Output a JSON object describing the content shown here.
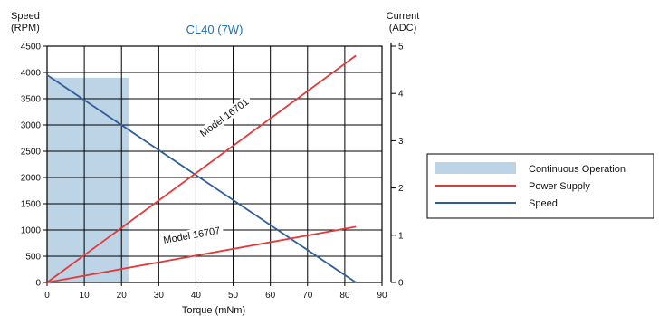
{
  "chart_data": {
    "type": "line",
    "title": "CL40 (7W)",
    "xlabel": "Torque (mNm)",
    "ylabel_left": [
      "Speed",
      "(RPM)"
    ],
    "ylabel_right": [
      "Current",
      "(ADC)"
    ],
    "xlim": [
      0,
      90
    ],
    "ylim_left": [
      0,
      4500
    ],
    "ylim_right": [
      0,
      5
    ],
    "x_ticks": [
      "0",
      "10",
      "20",
      "30",
      "40",
      "50",
      "60",
      "70",
      "80",
      "90"
    ],
    "y_left_ticks": [
      "0",
      "500",
      "1000",
      "1500",
      "2000",
      "2500",
      "3000",
      "3500",
      "4000",
      "4500"
    ],
    "y_right_ticks": [
      "0",
      "1",
      "2",
      "3",
      "4",
      "5"
    ],
    "grid": true,
    "legend_position": "right",
    "continuous_operation": {
      "x": [
        0,
        22
      ],
      "y": [
        0,
        3900
      ],
      "axis": "left",
      "color": "#bcd4e6"
    },
    "series": [
      {
        "name": "Speed",
        "axis": "left",
        "color": "#2f5e98",
        "x": [
          0,
          83
        ],
        "y": [
          3950,
          0
        ]
      },
      {
        "name": "Power Supply",
        "axis": "right",
        "color": "#e23a3a",
        "x": [
          0,
          83
        ],
        "y": [
          0,
          4.8
        ],
        "label": "Model 16701"
      },
      {
        "name": "Power Supply",
        "axis": "right",
        "color": "#e23a3a",
        "x": [
          0,
          83
        ],
        "y": [
          0,
          1.18
        ],
        "label": "Model 16707"
      }
    ],
    "annotations": [
      {
        "text": "Model 16701",
        "x": 48,
        "y": 3.45,
        "axis": "right"
      },
      {
        "text": "Model 16707",
        "x": 39,
        "y": 0.95,
        "axis": "right"
      }
    ],
    "legend": [
      {
        "label": "Continuous Operation",
        "kind": "fill",
        "color": "#bcd4e6"
      },
      {
        "label": "Power Supply",
        "kind": "line",
        "color": "#e23a3a"
      },
      {
        "label": "Speed",
        "kind": "line",
        "color": "#2f5e98"
      }
    ]
  }
}
